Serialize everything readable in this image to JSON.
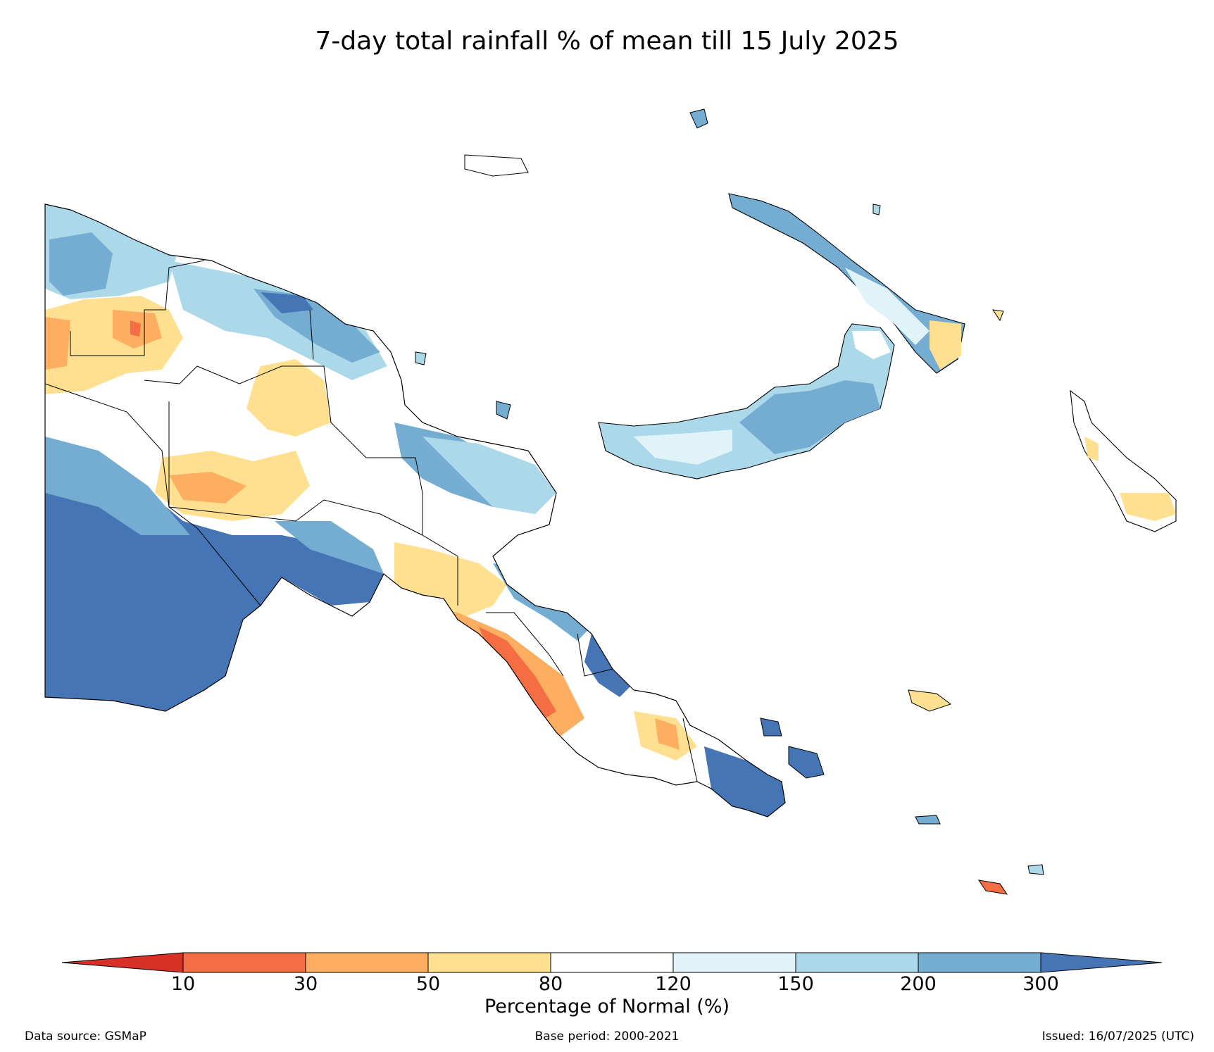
{
  "title": "7-day total rainfall % of mean till 15 July 2025",
  "colorbar": {
    "label": "Percentage of Normal (%)",
    "ticks": [
      "10",
      "30",
      "50",
      "80",
      "120",
      "150",
      "200",
      "300"
    ],
    "colors": {
      "below_10": "#d73027",
      "10_30": "#f46d43",
      "30_50": "#fdae61",
      "50_80": "#fee090",
      "80_120": "#ffffff",
      "120_150": "#e0f3f8",
      "150_200": "#abd9e9",
      "200_300": "#74add1",
      "above_300": "#4575b4"
    }
  },
  "footer": {
    "source": "Data source: GSMaP",
    "base_period": "Base period: 2000-2021",
    "issued": "Issued: 16/07/2025 (UTC)"
  }
}
